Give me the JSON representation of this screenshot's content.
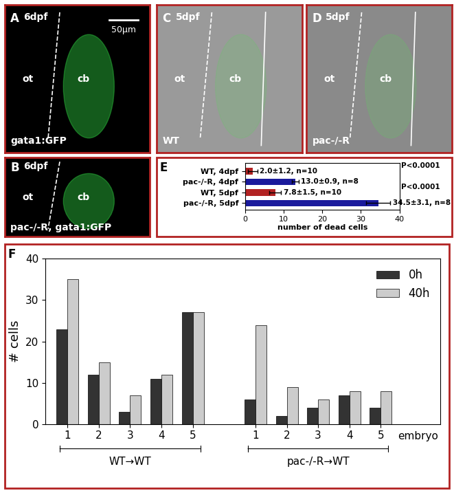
{
  "images": [
    {
      "panel": "A",
      "stage": "6dpf",
      "regions": [
        "ot",
        "cb"
      ],
      "label": "gata1:GFP",
      "scale_bar": "50μm",
      "background": "#000000"
    },
    {
      "panel": "C",
      "stage": "5dpf",
      "regions": [
        "ot",
        "cb"
      ],
      "label": "WT",
      "background": "#9a9a9a"
    },
    {
      "panel": "D",
      "stage": "5dpf",
      "regions": [
        "ot",
        "cb"
      ],
      "label": "pac-/-R",
      "background": "#8a8a8a"
    },
    {
      "panel": "B",
      "stage": "6dpf",
      "regions": [
        "ot",
        "cb"
      ],
      "label": "pac-/-R, gata1:GFP",
      "background": "#000000"
    }
  ],
  "chart_data": [
    {
      "type": "bar",
      "panel": "E",
      "orientation": "horizontal",
      "categories": [
        "WT, 4dpf",
        "pac-/-R, 4dpf",
        "WT, 5dpf",
        "pac-/-R, 5dpf"
      ],
      "values": [
        2.0,
        13.0,
        7.8,
        34.5
      ],
      "errors": [
        1.2,
        0.9,
        1.5,
        3.1
      ],
      "value_labels": [
        "2.0±1.2, n=10",
        "13.0±0.9, n=8",
        "7.8±1.5, n=10",
        "34.5±3.1, n=8"
      ],
      "colors": [
        "#b22222",
        "#1a1a9c",
        "#b22222",
        "#1a1a9c"
      ],
      "annotations": [
        "P<0.0001",
        "P<0.0001"
      ],
      "x_label": "number of dead cells",
      "xlim": [
        0,
        40
      ],
      "xticks": [
        0,
        10,
        20,
        30,
        40
      ]
    },
    {
      "type": "bar",
      "panel": "F",
      "categories": [
        "1",
        "2",
        "3",
        "4",
        "5",
        "1",
        "2",
        "3",
        "4",
        "5"
      ],
      "groups": [
        "WT→WT",
        "pac-/-R→WT"
      ],
      "series": [
        {
          "name": "0h",
          "color": "#333333",
          "values": [
            23,
            12,
            3,
            11,
            27,
            6,
            2,
            4,
            7,
            4
          ]
        },
        {
          "name": "40h",
          "color": "#cccccc",
          "values": [
            35,
            15,
            7,
            12,
            27,
            24,
            9,
            6,
            8,
            8
          ]
        }
      ],
      "x_label": "embryo",
      "y_label": "# cells",
      "ylim": [
        0,
        40
      ],
      "yticks": [
        0,
        10,
        20,
        30,
        40
      ],
      "legend": "upper right"
    }
  ]
}
